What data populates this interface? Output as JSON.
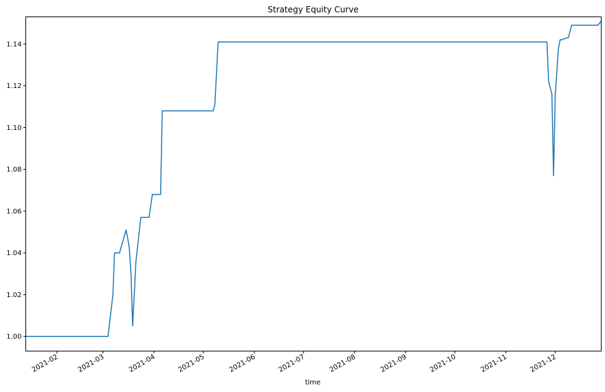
{
  "chart_data": {
    "type": "line",
    "title": "Strategy Equity Curve",
    "xlabel": "time",
    "ylabel": "",
    "xlim": [
      "2021-01-13",
      "2021-12-29"
    ],
    "ylim": [
      0.993,
      1.153
    ],
    "x_ticks": [
      "2021-02",
      "2021-03",
      "2021-04",
      "2021-05",
      "2021-06",
      "2021-07",
      "2021-08",
      "2021-09",
      "2021-10",
      "2021-11",
      "2021-12"
    ],
    "y_ticks": [
      "1.00",
      "1.02",
      "1.04",
      "1.06",
      "1.08",
      "1.10",
      "1.12",
      "1.14"
    ],
    "grid": false,
    "legend": "none",
    "colors": {
      "line": "#1f77b4"
    },
    "series": [
      {
        "x": [
          "2021-01-13",
          "2021-03-04",
          "2021-03-07",
          "2021-03-08",
          "2021-03-09",
          "2021-03-10",
          "2021-03-11",
          "2021-03-15",
          "2021-03-16",
          "2021-03-17",
          "2021-03-18",
          "2021-03-19",
          "2021-03-21",
          "2021-03-23",
          "2021-03-24",
          "2021-03-26",
          "2021-03-29",
          "2021-03-31",
          "2021-04-01",
          "2021-04-05",
          "2021-04-06",
          "2021-04-07",
          "2021-05-06",
          "2021-05-07",
          "2021-05-08",
          "2021-05-10",
          "2021-11-23",
          "2021-11-26",
          "2021-11-27",
          "2021-11-29",
          "2021-11-30",
          "2021-12-01",
          "2021-12-03",
          "2021-12-04",
          "2021-12-05",
          "2021-12-08",
          "2021-12-09",
          "2021-12-11",
          "2021-12-27",
          "2021-12-29"
        ],
        "y": [
          1.0,
          1.0,
          1.02,
          1.04,
          1.04,
          1.04,
          1.04,
          1.051,
          1.047,
          1.042,
          1.03,
          1.005,
          1.036,
          1.05,
          1.057,
          1.057,
          1.057,
          1.068,
          1.068,
          1.068,
          1.108,
          1.108,
          1.108,
          1.108,
          1.111,
          1.141,
          1.141,
          1.141,
          1.122,
          1.116,
          1.077,
          1.115,
          1.138,
          1.142,
          1.142,
          1.143,
          1.143,
          1.149,
          1.149,
          1.151
        ]
      }
    ]
  }
}
